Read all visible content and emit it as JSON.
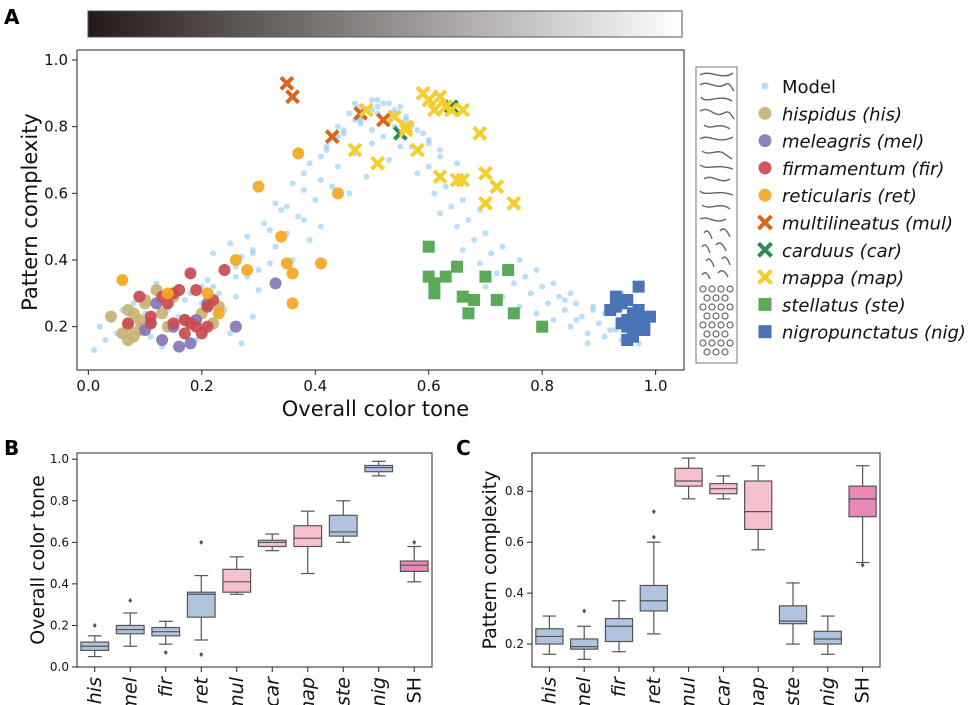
{
  "panel_labels": {
    "a": "A",
    "b": "B",
    "c": "C"
  },
  "chart_data": [
    {
      "type": "scatter",
      "panel": "A",
      "xlabel": "Overall color tone",
      "ylabel": "Pattern complexity",
      "xlim": [
        -0.02,
        1.05
      ],
      "ylim": [
        0.07,
        1.03
      ],
      "xticks": [
        "0.0",
        "0.2",
        "0.4",
        "0.6",
        "0.8",
        "1.0"
      ],
      "yticks": [
        "0.2",
        "0.4",
        "0.6",
        "0.8",
        "1.0"
      ],
      "grid": false,
      "legend_position": "right",
      "colorbar": {
        "orientation": "horizontal",
        "from": "#231a17",
        "to": "#ffffff"
      },
      "legend": [
        {
          "label": "Model",
          "marker": "dot",
          "color": "#8ec9f0"
        },
        {
          "label": "hispidus (his)",
          "marker": "circle",
          "color": "#c8b276"
        },
        {
          "label": "meleagris (mel)",
          "marker": "circle",
          "color": "#8476b8"
        },
        {
          "label": "firmamentum (fir)",
          "marker": "circle",
          "color": "#c84b4f"
        },
        {
          "label": "reticularis (ret)",
          "marker": "circle",
          "color": "#f5a623"
        },
        {
          "label": "multilineatus (mul)",
          "marker": "x",
          "color": "#d9661f"
        },
        {
          "label": "carduus (car)",
          "marker": "x",
          "color": "#2e8b4e"
        },
        {
          "label": "mappa (map)",
          "marker": "x",
          "color": "#f5cd2f"
        },
        {
          "label": "stellatus (ste)",
          "marker": "square",
          "color": "#5aaa5a"
        },
        {
          "label": "nigropunctatus (nig)",
          "marker": "square",
          "color": "#4a73b5"
        }
      ],
      "series": [
        {
          "name": "hispidus (his)",
          "marker": "circle",
          "color": "#c8b276",
          "x": [
            0.04,
            0.06,
            0.07,
            0.07,
            0.08,
            0.08,
            0.09,
            0.09,
            0.1,
            0.11,
            0.12,
            0.13,
            0.14,
            0.15,
            0.17,
            0.2,
            0.22,
            0.23,
            0.07,
            0.1
          ],
          "y": [
            0.23,
            0.18,
            0.25,
            0.2,
            0.24,
            0.17,
            0.22,
            0.19,
            0.27,
            0.21,
            0.31,
            0.24,
            0.2,
            0.29,
            0.22,
            0.24,
            0.21,
            0.26,
            0.16,
            0.28
          ]
        },
        {
          "name": "meleagris (mel)",
          "marker": "circle",
          "color": "#8476b8",
          "x": [
            0.1,
            0.12,
            0.13,
            0.15,
            0.16,
            0.18,
            0.19,
            0.21,
            0.26,
            0.33
          ],
          "y": [
            0.19,
            0.27,
            0.16,
            0.2,
            0.14,
            0.15,
            0.22,
            0.27,
            0.2,
            0.33
          ]
        },
        {
          "name": "firmamentum (fir)",
          "marker": "circle",
          "color": "#c84b4f",
          "x": [
            0.07,
            0.09,
            0.11,
            0.13,
            0.14,
            0.15,
            0.16,
            0.17,
            0.18,
            0.18,
            0.19,
            0.2,
            0.21,
            0.22,
            0.24,
            0.11,
            0.15,
            0.17,
            0.19,
            0.21
          ],
          "y": [
            0.21,
            0.29,
            0.23,
            0.29,
            0.27,
            0.3,
            0.31,
            0.18,
            0.36,
            0.21,
            0.31,
            0.18,
            0.26,
            0.28,
            0.37,
            0.21,
            0.21,
            0.22,
            0.2,
            0.2
          ]
        },
        {
          "name": "reticularis (ret)",
          "marker": "circle",
          "color": "#f5a623",
          "x": [
            0.06,
            0.14,
            0.21,
            0.23,
            0.26,
            0.28,
            0.3,
            0.34,
            0.35,
            0.36,
            0.36,
            0.37,
            0.41,
            0.44
          ],
          "y": [
            0.34,
            0.3,
            0.3,
            0.24,
            0.4,
            0.37,
            0.62,
            0.47,
            0.39,
            0.36,
            0.27,
            0.72,
            0.39,
            0.6
          ]
        },
        {
          "name": "multilineatus (mul)",
          "marker": "x",
          "color": "#d9661f",
          "x": [
            0.35,
            0.36,
            0.43,
            0.48,
            0.52
          ],
          "y": [
            0.93,
            0.89,
            0.77,
            0.84,
            0.82
          ]
        },
        {
          "name": "carduus (car)",
          "marker": "x",
          "color": "#2e8b4e",
          "x": [
            0.55,
            0.64
          ],
          "y": [
            0.78,
            0.86
          ]
        },
        {
          "name": "mappa (map)",
          "marker": "x",
          "color": "#f5cd2f",
          "x": [
            0.47,
            0.51,
            0.54,
            0.56,
            0.58,
            0.59,
            0.6,
            0.61,
            0.62,
            0.63,
            0.64,
            0.66,
            0.66,
            0.69,
            0.7,
            0.72,
            0.75,
            0.62,
            0.65,
            0.7,
            0.49,
            0.56
          ],
          "y": [
            0.73,
            0.69,
            0.83,
            0.79,
            0.73,
            0.9,
            0.88,
            0.85,
            0.89,
            0.86,
            0.85,
            0.64,
            0.85,
            0.78,
            0.66,
            0.62,
            0.57,
            0.65,
            0.64,
            0.57,
            0.85,
            0.8
          ]
        },
        {
          "name": "stellatus (ste)",
          "marker": "square",
          "color": "#5aaa5a",
          "x": [
            0.6,
            0.6,
            0.61,
            0.63,
            0.65,
            0.66,
            0.67,
            0.68,
            0.7,
            0.72,
            0.74,
            0.75,
            0.8,
            0.61
          ],
          "y": [
            0.44,
            0.35,
            0.3,
            0.35,
            0.38,
            0.29,
            0.24,
            0.28,
            0.35,
            0.28,
            0.37,
            0.24,
            0.2,
            0.33
          ]
        },
        {
          "name": "nigropunctatus (nig)",
          "marker": "square",
          "color": "#4a73b5",
          "x": [
            0.92,
            0.93,
            0.94,
            0.95,
            0.95,
            0.96,
            0.96,
            0.97,
            0.97,
            0.98,
            0.99,
            0.93,
            0.95,
            0.97,
            0.96,
            0.94,
            0.98,
            0.97,
            0.95
          ],
          "y": [
            0.25,
            0.29,
            0.27,
            0.22,
            0.2,
            0.18,
            0.24,
            0.21,
            0.25,
            0.2,
            0.23,
            0.26,
            0.28,
            0.32,
            0.17,
            0.21,
            0.19,
            0.23,
            0.16
          ]
        }
      ],
      "model_points": {
        "x": [
          0.01,
          0.03,
          0.05,
          0.07,
          0.09,
          0.11,
          0.13,
          0.15,
          0.17,
          0.19,
          0.21,
          0.23,
          0.25,
          0.27,
          0.29,
          0.02,
          0.04,
          0.06,
          0.08,
          0.1,
          0.12,
          0.14,
          0.16,
          0.18,
          0.2,
          0.22,
          0.24,
          0.26,
          0.28,
          0.3,
          0.12,
          0.15,
          0.18,
          0.21,
          0.24,
          0.27,
          0.3,
          0.33,
          0.36,
          0.39,
          0.14,
          0.17,
          0.2,
          0.23,
          0.26,
          0.29,
          0.32,
          0.35,
          0.38,
          0.41,
          0.22,
          0.25,
          0.28,
          0.31,
          0.34,
          0.37,
          0.4,
          0.43,
          0.46,
          0.49,
          0.26,
          0.29,
          0.32,
          0.35,
          0.38,
          0.41,
          0.44,
          0.47,
          0.5,
          0.53,
          0.33,
          0.36,
          0.39,
          0.42,
          0.45,
          0.48,
          0.51,
          0.54,
          0.57,
          0.6,
          0.38,
          0.41,
          0.44,
          0.47,
          0.5,
          0.53,
          0.56,
          0.59,
          0.62,
          0.65,
          0.44,
          0.46,
          0.48,
          0.5,
          0.52,
          0.54,
          0.56,
          0.58,
          0.6,
          0.62,
          0.42,
          0.45,
          0.48,
          0.51,
          0.54,
          0.57,
          0.6,
          0.63,
          0.66,
          0.69,
          0.58,
          0.61,
          0.64,
          0.67,
          0.7,
          0.73,
          0.76,
          0.79,
          0.82,
          0.85,
          0.62,
          0.65,
          0.68,
          0.71,
          0.74,
          0.77,
          0.8,
          0.83,
          0.86,
          0.89,
          0.66,
          0.69,
          0.72,
          0.75,
          0.78,
          0.81,
          0.84,
          0.87,
          0.9,
          0.93,
          0.7,
          0.73,
          0.76,
          0.79,
          0.82,
          0.85,
          0.88,
          0.91,
          0.94,
          0.97,
          0.47,
          0.49,
          0.51,
          0.53,
          0.55,
          0.57,
          0.52,
          0.5,
          0.48,
          0.55,
          0.86,
          0.89,
          0.92,
          0.95,
          0.98,
          0.84,
          0.88,
          0.91,
          0.94,
          0.97
        ],
        "y": [
          0.13,
          0.16,
          0.18,
          0.15,
          0.21,
          0.17,
          0.14,
          0.19,
          0.22,
          0.16,
          0.2,
          0.24,
          0.18,
          0.15,
          0.23,
          0.2,
          0.22,
          0.25,
          0.27,
          0.24,
          0.28,
          0.26,
          0.23,
          0.3,
          0.27,
          0.32,
          0.25,
          0.29,
          0.35,
          0.31,
          0.33,
          0.29,
          0.36,
          0.34,
          0.38,
          0.41,
          0.37,
          0.44,
          0.4,
          0.46,
          0.25,
          0.28,
          0.32,
          0.3,
          0.35,
          0.42,
          0.39,
          0.48,
          0.52,
          0.5,
          0.42,
          0.45,
          0.47,
          0.51,
          0.55,
          0.53,
          0.58,
          0.62,
          0.6,
          0.65,
          0.38,
          0.43,
          0.49,
          0.56,
          0.61,
          0.64,
          0.68,
          0.72,
          0.75,
          0.7,
          0.57,
          0.63,
          0.69,
          0.74,
          0.79,
          0.83,
          0.86,
          0.84,
          0.8,
          0.76,
          0.66,
          0.71,
          0.77,
          0.82,
          0.85,
          0.87,
          0.83,
          0.78,
          0.73,
          0.69,
          0.8,
          0.84,
          0.86,
          0.88,
          0.87,
          0.85,
          0.82,
          0.79,
          0.75,
          0.71,
          0.73,
          0.78,
          0.81,
          0.84,
          0.8,
          0.74,
          0.68,
          0.62,
          0.58,
          0.55,
          0.66,
          0.6,
          0.56,
          0.52,
          0.48,
          0.44,
          0.4,
          0.37,
          0.33,
          0.3,
          0.54,
          0.5,
          0.46,
          0.42,
          0.38,
          0.35,
          0.32,
          0.29,
          0.27,
          0.25,
          0.43,
          0.39,
          0.36,
          0.33,
          0.3,
          0.27,
          0.25,
          0.23,
          0.21,
          0.19,
          0.32,
          0.29,
          0.26,
          0.24,
          0.22,
          0.2,
          0.18,
          0.17,
          0.16,
          0.15,
          0.87,
          0.85,
          0.88,
          0.83,
          0.86,
          0.81,
          0.77,
          0.79,
          0.82,
          0.74,
          0.22,
          0.26,
          0.19,
          0.17,
          0.21,
          0.28,
          0.15,
          0.24,
          0.3,
          0.18
        ]
      }
    },
    {
      "type": "box",
      "panel": "B",
      "ylabel": "Overall color tone",
      "ylim": [
        0.0,
        1.03
      ],
      "yticks": [
        "0.0",
        "0.2",
        "0.4",
        "0.6",
        "0.8",
        "1.0"
      ],
      "categories": [
        "his",
        "mel",
        "fir",
        "ret",
        "mul",
        "car",
        "map",
        "ste",
        "nig",
        "ISH"
      ],
      "boxes": [
        {
          "min": 0.05,
          "q1": 0.08,
          "median": 0.1,
          "q3": 0.12,
          "max": 0.15,
          "outliers": [
            0.2
          ],
          "color": "#b0c4de"
        },
        {
          "min": 0.1,
          "q1": 0.16,
          "median": 0.18,
          "q3": 0.2,
          "max": 0.26,
          "outliers": [
            0.32
          ],
          "color": "#b0c4de"
        },
        {
          "min": 0.11,
          "q1": 0.15,
          "median": 0.17,
          "q3": 0.19,
          "max": 0.22,
          "outliers": [
            0.07
          ],
          "color": "#b0c4de"
        },
        {
          "min": 0.13,
          "q1": 0.24,
          "median": 0.35,
          "q3": 0.36,
          "max": 0.44,
          "outliers": [
            0.06,
            0.6
          ],
          "color": "#b0c4de"
        },
        {
          "min": 0.35,
          "q1": 0.36,
          "median": 0.41,
          "q3": 0.47,
          "max": 0.53,
          "outliers": [],
          "color": "#f6c1cc"
        },
        {
          "min": 0.56,
          "q1": 0.58,
          "median": 0.6,
          "q3": 0.61,
          "max": 0.64,
          "outliers": [],
          "color": "#f6c1cc"
        },
        {
          "min": 0.45,
          "q1": 0.58,
          "median": 0.62,
          "q3": 0.68,
          "max": 0.75,
          "outliers": [],
          "color": "#f6c1cc"
        },
        {
          "min": 0.6,
          "q1": 0.63,
          "median": 0.65,
          "q3": 0.73,
          "max": 0.8,
          "outliers": [],
          "color": "#b0c4de"
        },
        {
          "min": 0.92,
          "q1": 0.94,
          "median": 0.96,
          "q3": 0.97,
          "max": 0.99,
          "outliers": [],
          "color": "#b0c4de"
        },
        {
          "min": 0.41,
          "q1": 0.46,
          "median": 0.49,
          "q3": 0.51,
          "max": 0.58,
          "outliers": [
            0.6
          ],
          "color": "#e887b8"
        }
      ]
    },
    {
      "type": "box",
      "panel": "C",
      "ylabel": "Pattern complexity",
      "ylim": [
        0.11,
        0.95
      ],
      "yticks": [
        "0.2",
        "0.4",
        "0.6",
        "0.8"
      ],
      "categories": [
        "his",
        "mel",
        "fir",
        "ret",
        "mul",
        "car",
        "map",
        "ste",
        "nig",
        "ISH"
      ],
      "boxes": [
        {
          "min": 0.16,
          "q1": 0.2,
          "median": 0.23,
          "q3": 0.26,
          "max": 0.31,
          "outliers": [],
          "color": "#b0c4de"
        },
        {
          "min": 0.14,
          "q1": 0.18,
          "median": 0.19,
          "q3": 0.22,
          "max": 0.27,
          "outliers": [
            0.33
          ],
          "color": "#b0c4de"
        },
        {
          "min": 0.17,
          "q1": 0.21,
          "median": 0.27,
          "q3": 0.3,
          "max": 0.37,
          "outliers": [],
          "color": "#b0c4de"
        },
        {
          "min": 0.24,
          "q1": 0.33,
          "median": 0.37,
          "q3": 0.43,
          "max": 0.6,
          "outliers": [
            0.62,
            0.72
          ],
          "color": "#b0c4de"
        },
        {
          "min": 0.77,
          "q1": 0.82,
          "median": 0.84,
          "q3": 0.89,
          "max": 0.93,
          "outliers": [],
          "color": "#f6c1cc"
        },
        {
          "min": 0.77,
          "q1": 0.79,
          "median": 0.81,
          "q3": 0.83,
          "max": 0.86,
          "outliers": [],
          "color": "#f6c1cc"
        },
        {
          "min": 0.57,
          "q1": 0.65,
          "median": 0.72,
          "q3": 0.84,
          "max": 0.9,
          "outliers": [],
          "color": "#f6c1cc"
        },
        {
          "min": 0.2,
          "q1": 0.28,
          "median": 0.29,
          "q3": 0.35,
          "max": 0.44,
          "outliers": [],
          "color": "#b0c4de"
        },
        {
          "min": 0.16,
          "q1": 0.2,
          "median": 0.22,
          "q3": 0.25,
          "max": 0.31,
          "outliers": [],
          "color": "#b0c4de"
        },
        {
          "min": 0.52,
          "q1": 0.7,
          "median": 0.77,
          "q3": 0.82,
          "max": 0.9,
          "outliers": [
            0.51
          ],
          "color": "#e887b8"
        }
      ]
    }
  ]
}
